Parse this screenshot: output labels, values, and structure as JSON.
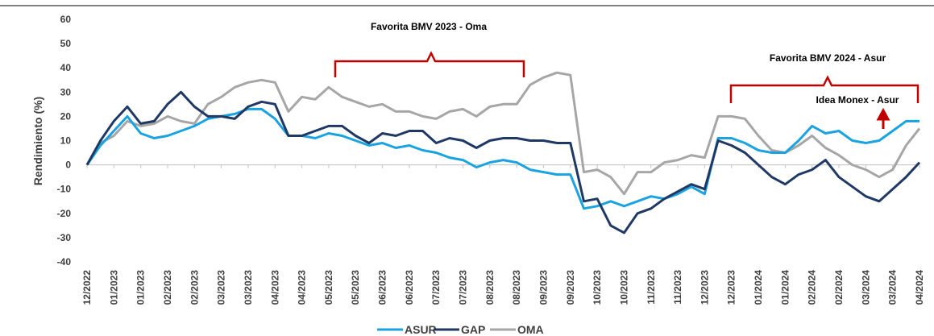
{
  "chart_data": {
    "type": "line",
    "y_label": "Rendimiento (%)",
    "annotations": [
      "Favorita BMV 2023 - Oma",
      "Favorita BMV 2024 - Asur",
      "Idea Monex - Asur"
    ],
    "categories": [
      "12/2022",
      null,
      "01/2023",
      null,
      "01/2023",
      null,
      "02/2023",
      null,
      "02/2023",
      null,
      "03/2023",
      null,
      "03/2023",
      null,
      "04/2023",
      null,
      "04/2023",
      null,
      "05/2023",
      null,
      "05/2023",
      null,
      "06/2023",
      null,
      "06/2023",
      null,
      "07/2023",
      null,
      "07/2023",
      null,
      "08/2023",
      null,
      "08/2023",
      null,
      "09/2023",
      null,
      "09/2023",
      null,
      "10/2023",
      null,
      "10/2023",
      null,
      "11/2023",
      null,
      "11/2023",
      null,
      "12/2023",
      null,
      "12/2023",
      null,
      "01/2024",
      null,
      "01/2024",
      null,
      "02/2024",
      null,
      "02/2024",
      null,
      "03/2024",
      null,
      "03/2024",
      null,
      "04/2024"
    ],
    "series": [
      {
        "name": "ASUR",
        "color": "#1aa3e0",
        "values": [
          0,
          8,
          14,
          20,
          13,
          11,
          12,
          14,
          16,
          19,
          20,
          21,
          23,
          23,
          19,
          12,
          12,
          11,
          13,
          12,
          10,
          8,
          9,
          7,
          8,
          6,
          5,
          3,
          2,
          -1,
          1,
          2,
          1,
          -2,
          -3,
          -4,
          -4,
          -18,
          -17,
          -15,
          -17,
          -15,
          -13,
          -14,
          -12,
          -9,
          -12,
          11,
          11,
          9,
          6,
          5,
          5,
          10,
          16,
          13,
          14,
          10,
          9,
          10,
          14,
          18,
          18
        ]
      },
      {
        "name": "GAP",
        "color": "#1f3864",
        "values": [
          0,
          10,
          18,
          24,
          17,
          18,
          25,
          30,
          24,
          20,
          20,
          19,
          24,
          26,
          25,
          12,
          12,
          14,
          16,
          16,
          12,
          9,
          13,
          12,
          14,
          14,
          9,
          11,
          10,
          7,
          10,
          11,
          11,
          10,
          10,
          9,
          9,
          -15,
          -14,
          -25,
          -28,
          -20,
          -18,
          -14,
          -11,
          -8,
          -10,
          10,
          8,
          5,
          0,
          -5,
          -8,
          -4,
          -2,
          2,
          -5,
          -9,
          -13,
          -15,
          -10,
          -5,
          1
        ]
      },
      {
        "name": "OMA",
        "color": "#a6a6a6",
        "values": [
          0,
          9,
          12,
          18,
          16,
          17,
          20,
          18,
          17,
          25,
          28,
          32,
          34,
          35,
          34,
          22,
          28,
          27,
          32,
          28,
          26,
          24,
          25,
          22,
          22,
          20,
          19,
          22,
          23,
          20,
          24,
          25,
          25,
          33,
          36,
          38,
          37,
          -3,
          -2,
          -5,
          -12,
          -3,
          -3,
          1,
          2,
          4,
          3,
          20,
          20,
          19,
          12,
          6,
          5,
          8,
          12,
          7,
          4,
          0,
          -2,
          -5,
          -2,
          8,
          15
        ]
      }
    ],
    "ylim": [
      -40,
      60
    ],
    "yticks": [
      -40,
      -30,
      -20,
      -10,
      0,
      10,
      20,
      30,
      40,
      50,
      60
    ],
    "grid": false
  }
}
